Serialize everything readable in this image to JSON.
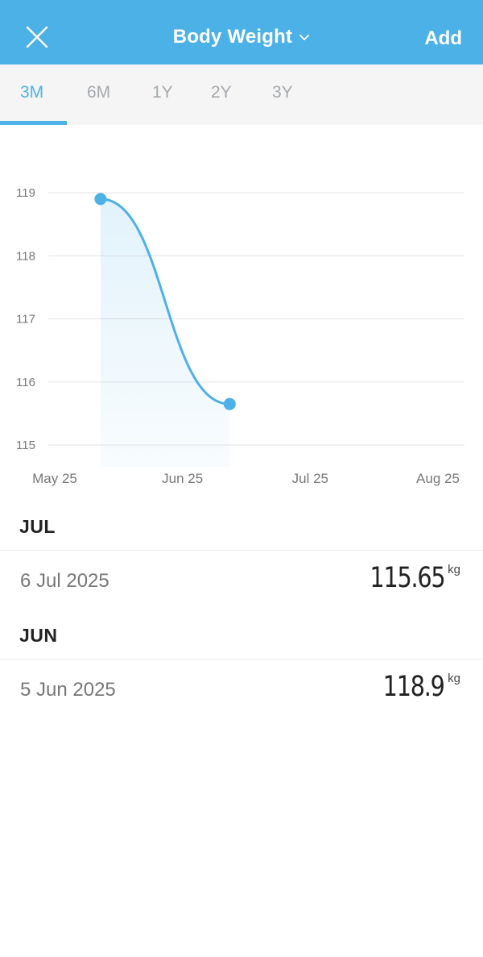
{
  "header": {
    "title": "Body Weight",
    "add_label": "Add",
    "background": "#4cb1e7"
  },
  "tabs": [
    {
      "label": "3M",
      "active": true
    },
    {
      "label": "6M",
      "active": false
    },
    {
      "label": "1Y",
      "active": false
    },
    {
      "label": "2Y",
      "active": false
    },
    {
      "label": "3Y",
      "active": false
    }
  ],
  "chart_data": {
    "type": "area",
    "x_ticks": [
      "May 25",
      "Jun 25",
      "Jul 25",
      "Aug 25"
    ],
    "y_ticks": [
      "119",
      "118",
      "117",
      "116",
      "115"
    ],
    "ylim": [
      115,
      119
    ],
    "xlim": [
      "2025-05-25",
      "2025-08-25"
    ],
    "grid": true,
    "series": [
      {
        "points": [
          {
            "x": "2025-06-05",
            "y": 118.9
          },
          {
            "x": "2025-07-06",
            "y": 115.65
          }
        ],
        "color": "#4cb1e7"
      }
    ]
  },
  "entries": [
    {
      "month": "JUL",
      "date": "6 Jul 2025",
      "value": "115.65",
      "unit": "kg"
    },
    {
      "month": "JUN",
      "date": "5 Jun 2025",
      "value": "118.9",
      "unit": "kg"
    }
  ]
}
